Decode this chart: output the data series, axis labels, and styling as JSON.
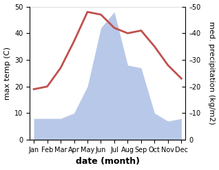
{
  "months": [
    "Jan",
    "Feb",
    "Mar",
    "Apr",
    "May",
    "Jun",
    "Jul",
    "Aug",
    "Sep",
    "Oct",
    "Nov",
    "Dec"
  ],
  "month_positions": [
    0,
    1,
    2,
    3,
    4,
    5,
    6,
    7,
    8,
    9,
    10,
    11
  ],
  "temperature": [
    19,
    20,
    27,
    37,
    48,
    47,
    42,
    40,
    41,
    35,
    28,
    23
  ],
  "precipitation": [
    8,
    8,
    8,
    10,
    20,
    42,
    48,
    28,
    27,
    10,
    7,
    8
  ],
  "temp_color": "#c0504d",
  "precip_color": "#b8c8e8",
  "ylabel_left": "max temp (C)",
  "ylabel_right": "med. precipitation (kg/m2)",
  "xlabel": "date (month)",
  "ylim": [
    0,
    50
  ],
  "yticks": [
    0,
    10,
    20,
    30,
    40,
    50
  ],
  "bg_color": "#ffffff",
  "temp_linewidth": 2.0,
  "tick_labelsize": 7,
  "axis_labelsize": 8,
  "xlabel_fontsize": 9
}
